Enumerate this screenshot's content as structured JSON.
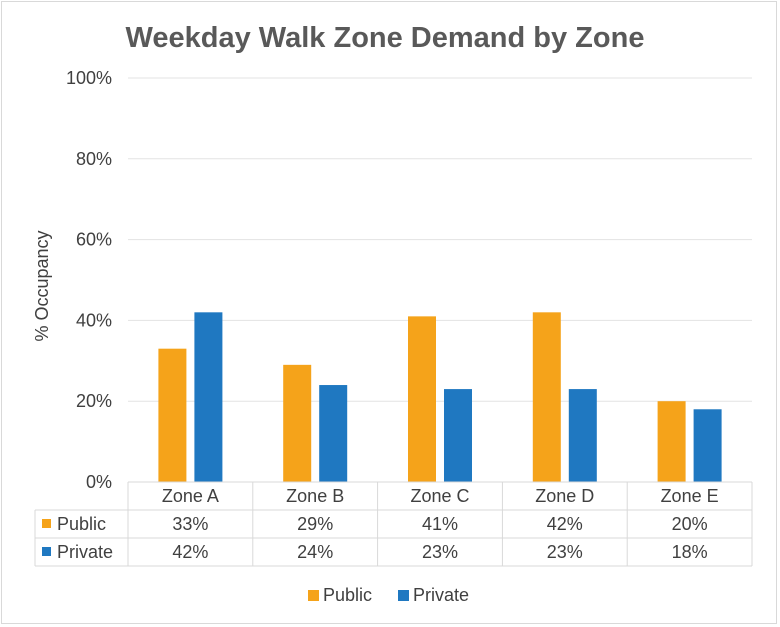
{
  "chart_data": {
    "type": "bar",
    "title": "Weekday Walk Zone Demand by Zone",
    "xlabel": "",
    "ylabel": "% Occupancy",
    "ylim": [
      0,
      100
    ],
    "yticks": [
      0,
      20,
      40,
      60,
      80,
      100
    ],
    "ytick_labels": [
      "0%",
      "20%",
      "40%",
      "60%",
      "80%",
      "100%"
    ],
    "grid": true,
    "legend_position": "bottom",
    "categories": [
      "Zone A",
      "Zone B",
      "Zone C",
      "Zone D",
      "Zone E"
    ],
    "series": [
      {
        "name": "Public",
        "color": "#f5a31a",
        "values": [
          33,
          29,
          41,
          42,
          20
        ],
        "labels": [
          "33%",
          "29%",
          "41%",
          "42%",
          "20%"
        ]
      },
      {
        "name": "Private",
        "color": "#1f78c1",
        "values": [
          42,
          24,
          23,
          23,
          18
        ],
        "labels": [
          "42%",
          "24%",
          "23%",
          "23%",
          "18%"
        ]
      }
    ]
  }
}
